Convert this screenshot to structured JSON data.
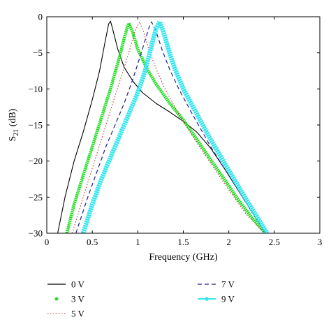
{
  "chart_data": {
    "type": "line",
    "xlabel": "Frequency (GHz)",
    "ylabel_main": "S",
    "ylabel_sub": "21",
    "ylabel_unit": " (dB)",
    "xlim": [
      0,
      3
    ],
    "ylim": [
      -30,
      0
    ],
    "xticks": [
      0,
      0.5,
      1,
      1.5,
      2,
      2.5,
      3
    ],
    "xtick_labels": [
      "0",
      "0.5",
      "1",
      "1.5",
      "2",
      "2.5",
      "3"
    ],
    "yticks": [
      0,
      -5,
      -10,
      -15,
      -20,
      -25,
      -30
    ],
    "ytick_labels": [
      "0",
      "−5",
      "−10",
      "−15",
      "−20",
      "−25",
      "−30"
    ],
    "grid": false,
    "legend_position": "below",
    "series": [
      {
        "name": "0 V",
        "color": "#000000",
        "style": "solid",
        "points": [
          [
            0.12,
            -30
          ],
          [
            0.2,
            -25
          ],
          [
            0.3,
            -20
          ],
          [
            0.4,
            -16
          ],
          [
            0.5,
            -11.5
          ],
          [
            0.58,
            -7.5
          ],
          [
            0.64,
            -3.5
          ],
          [
            0.68,
            -1
          ],
          [
            0.7,
            -0.6
          ],
          [
            0.72,
            -1.5
          ],
          [
            0.78,
            -4.5
          ],
          [
            0.85,
            -7
          ],
          [
            0.95,
            -9
          ],
          [
            1.05,
            -10.5
          ],
          [
            1.2,
            -12
          ],
          [
            1.35,
            -13.2
          ],
          [
            1.5,
            -14.5
          ],
          [
            1.65,
            -16
          ],
          [
            1.8,
            -18.2
          ],
          [
            1.95,
            -21
          ],
          [
            2.1,
            -24
          ],
          [
            2.25,
            -27
          ],
          [
            2.38,
            -29.5
          ],
          [
            2.4,
            -30
          ]
        ]
      },
      {
        "name": "3 V",
        "color": "#22dd22",
        "style": "dots",
        "points": [
          [
            0.22,
            -30
          ],
          [
            0.3,
            -26
          ],
          [
            0.4,
            -22
          ],
          [
            0.5,
            -18
          ],
          [
            0.6,
            -14
          ],
          [
            0.7,
            -10
          ],
          [
            0.8,
            -5.5
          ],
          [
            0.86,
            -2.5
          ],
          [
            0.9,
            -0.9
          ],
          [
            0.94,
            -2
          ],
          [
            1.0,
            -4.5
          ],
          [
            1.1,
            -7.2
          ],
          [
            1.2,
            -9.3
          ],
          [
            1.35,
            -12
          ],
          [
            1.5,
            -14.3
          ],
          [
            1.65,
            -17
          ],
          [
            1.8,
            -19.8
          ],
          [
            1.95,
            -22.5
          ],
          [
            2.1,
            -25.3
          ],
          [
            2.25,
            -27.8
          ],
          [
            2.4,
            -30
          ]
        ]
      },
      {
        "name": "5 V",
        "color": "#cc3333",
        "style": "dotted",
        "points": [
          [
            0.28,
            -30
          ],
          [
            0.4,
            -25
          ],
          [
            0.5,
            -21
          ],
          [
            0.6,
            -17
          ],
          [
            0.7,
            -13
          ],
          [
            0.8,
            -9
          ],
          [
            0.9,
            -5
          ],
          [
            0.97,
            -2
          ],
          [
            1.02,
            -0.7
          ],
          [
            1.06,
            -2
          ],
          [
            1.12,
            -4.5
          ],
          [
            1.2,
            -7.2
          ],
          [
            1.3,
            -10
          ],
          [
            1.45,
            -13.5
          ],
          [
            1.6,
            -16.5
          ],
          [
            1.8,
            -20.3
          ],
          [
            2.0,
            -24
          ],
          [
            2.2,
            -27.5
          ],
          [
            2.4,
            -30
          ]
        ]
      },
      {
        "name": "7 V",
        "color": "#22228a",
        "style": "dashed",
        "points": [
          [
            0.32,
            -30
          ],
          [
            0.45,
            -25
          ],
          [
            0.55,
            -21.5
          ],
          [
            0.65,
            -18
          ],
          [
            0.75,
            -15
          ],
          [
            0.85,
            -12
          ],
          [
            0.95,
            -8.5
          ],
          [
            1.05,
            -4.5
          ],
          [
            1.12,
            -1.6
          ],
          [
            1.15,
            -0.7
          ],
          [
            1.2,
            -2
          ],
          [
            1.27,
            -4.7
          ],
          [
            1.35,
            -7.3
          ],
          [
            1.45,
            -10
          ],
          [
            1.6,
            -13.5
          ],
          [
            1.8,
            -18
          ],
          [
            2.0,
            -22
          ],
          [
            2.2,
            -26
          ],
          [
            2.4,
            -30
          ]
        ]
      },
      {
        "name": "9 V",
        "color": "#33e6ee",
        "style": "markers",
        "points": [
          [
            0.4,
            -30
          ],
          [
            0.5,
            -26
          ],
          [
            0.6,
            -22.5
          ],
          [
            0.7,
            -19.5
          ],
          [
            0.8,
            -16.5
          ],
          [
            0.9,
            -13.5
          ],
          [
            1.0,
            -10.5
          ],
          [
            1.08,
            -7.5
          ],
          [
            1.15,
            -4
          ],
          [
            1.2,
            -1.7
          ],
          [
            1.24,
            -0.7
          ],
          [
            1.28,
            -2
          ],
          [
            1.33,
            -4.2
          ],
          [
            1.4,
            -7
          ],
          [
            1.5,
            -10
          ],
          [
            1.65,
            -13.5
          ],
          [
            1.8,
            -17
          ],
          [
            2.0,
            -21.3
          ],
          [
            2.2,
            -25.5
          ],
          [
            2.42,
            -30
          ]
        ]
      }
    ]
  }
}
